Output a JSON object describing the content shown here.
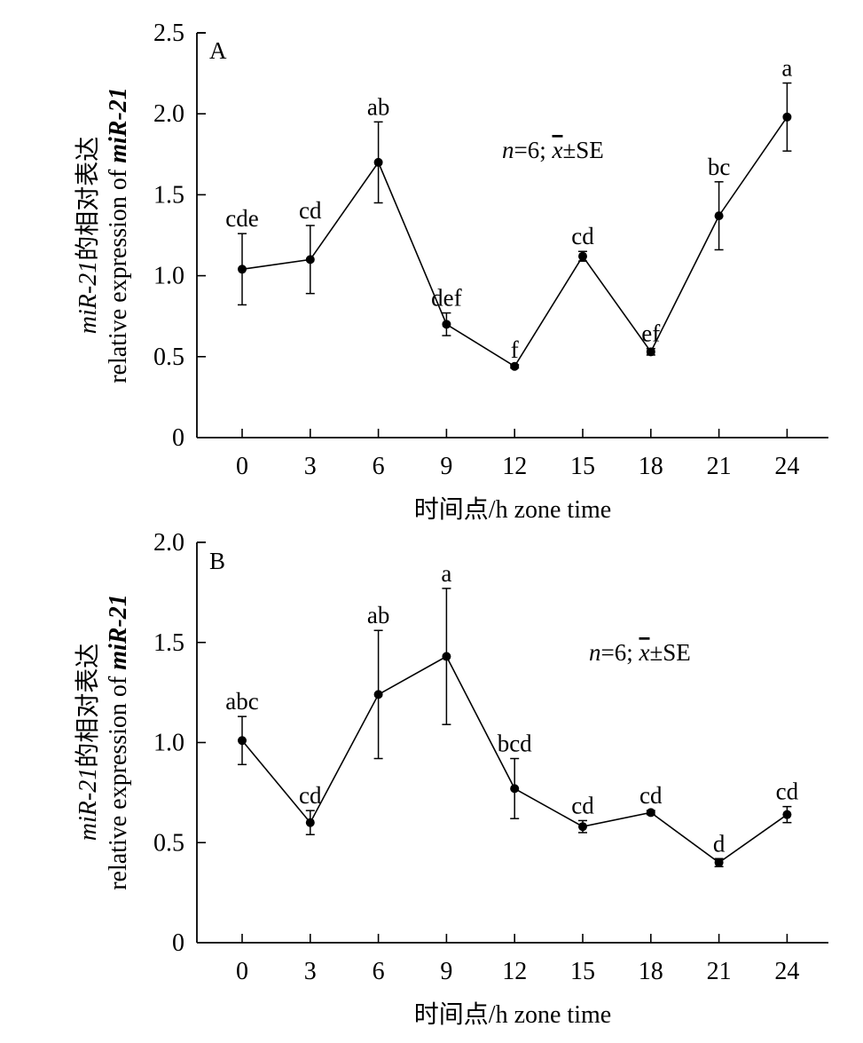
{
  "chart_data": [
    {
      "type": "line",
      "panel_label": "A",
      "annotation": {
        "n_label": "n",
        "n_value": "=6; ",
        "x_label": "x",
        "se_label": "±SE"
      },
      "x": [
        0,
        3,
        6,
        9,
        12,
        15,
        18,
        21,
        24
      ],
      "x_tick_labels": [
        "0",
        "3",
        "6",
        "9",
        "12",
        "15",
        "18",
        "21",
        "24"
      ],
      "y_tick_labels": [
        "0",
        "0.5",
        "1.0",
        "1.5",
        "2.0",
        "2.5"
      ],
      "y_ticks": [
        0,
        0.5,
        1.0,
        1.5,
        2.0,
        2.5
      ],
      "ylim": [
        0,
        2.5
      ],
      "xlabel": "时间点/h zone time",
      "ylabel_line1_italic": "miR-21",
      "ylabel_line1_rest": "的相对表达",
      "ylabel_line2_plain": "relative expression of ",
      "ylabel_line2_italic": "miR-21",
      "series": [
        {
          "values": [
            1.04,
            1.1,
            1.7,
            0.7,
            0.44,
            1.12,
            0.53,
            1.37,
            1.98
          ],
          "se": [
            0.22,
            0.21,
            0.25,
            0.07,
            0.01,
            0.03,
            0.02,
            0.21,
            0.21
          ],
          "significance": [
            "cde",
            "cd",
            "ab",
            "def",
            "f",
            "cd",
            "ef",
            "bc",
            "a"
          ]
        }
      ]
    },
    {
      "type": "line",
      "panel_label": "B",
      "annotation": {
        "n_label": "n",
        "n_value": "=6; ",
        "x_label": "x",
        "se_label": "±SE"
      },
      "x": [
        0,
        3,
        6,
        9,
        12,
        15,
        18,
        21,
        24
      ],
      "x_tick_labels": [
        "0",
        "3",
        "6",
        "9",
        "12",
        "15",
        "18",
        "21",
        "24"
      ],
      "y_tick_labels": [
        "0",
        "0.5",
        "1.0",
        "1.5",
        "2.0"
      ],
      "y_ticks": [
        0,
        0.5,
        1.0,
        1.5,
        2.0
      ],
      "ylim": [
        0,
        2.0
      ],
      "xlabel": "时间点/h zone time",
      "ylabel_line1_italic": "miR-21",
      "ylabel_line1_rest": "的相对表达",
      "ylabel_line2_plain": "relative expression of ",
      "ylabel_line2_italic": "miR-21",
      "series": [
        {
          "values": [
            1.01,
            0.6,
            1.24,
            1.43,
            0.77,
            0.58,
            0.65,
            0.4,
            0.64
          ],
          "se": [
            0.12,
            0.06,
            0.32,
            0.34,
            0.15,
            0.03,
            0.01,
            0.02,
            0.04
          ],
          "significance": [
            "abc",
            "cd",
            "ab",
            "a",
            "bcd",
            "cd",
            "cd",
            "d",
            "cd"
          ]
        }
      ]
    }
  ]
}
